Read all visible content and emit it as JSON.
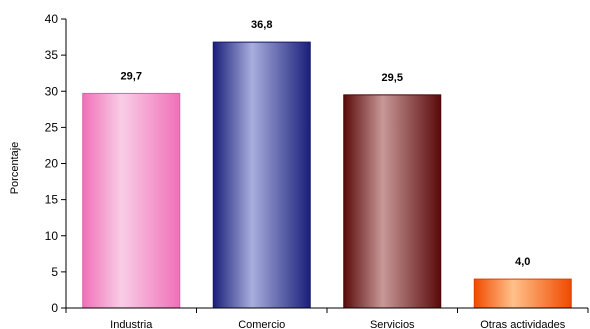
{
  "chart_data": {
    "type": "bar",
    "categories": [
      "Industria",
      "Comercio",
      "Servicios",
      "Otras actividades"
    ],
    "values": [
      29.7,
      36.8,
      29.5,
      4.0
    ],
    "value_labels": [
      "29,7",
      "36,8",
      "29,5",
      "4,0"
    ],
    "title": "",
    "xlabel": "",
    "ylabel": "Porcentaje",
    "ylim": [
      0,
      40
    ],
    "yticks": [
      0,
      5,
      10,
      15,
      20,
      25,
      30,
      35,
      40
    ],
    "grid": false,
    "legend": "none",
    "bar_colors": [
      {
        "light": "#f9cde6",
        "dark": "#f070b8",
        "edge": "#e060a8"
      },
      {
        "light": "#a8aedd",
        "dark": "#1a1f7a",
        "edge": "#14186a"
      },
      {
        "light": "#c89898",
        "dark": "#5a0a0a",
        "edge": "#4a0505"
      },
      {
        "light": "#ffc18a",
        "dark": "#f04a00",
        "edge": "#d84000"
      }
    ]
  }
}
